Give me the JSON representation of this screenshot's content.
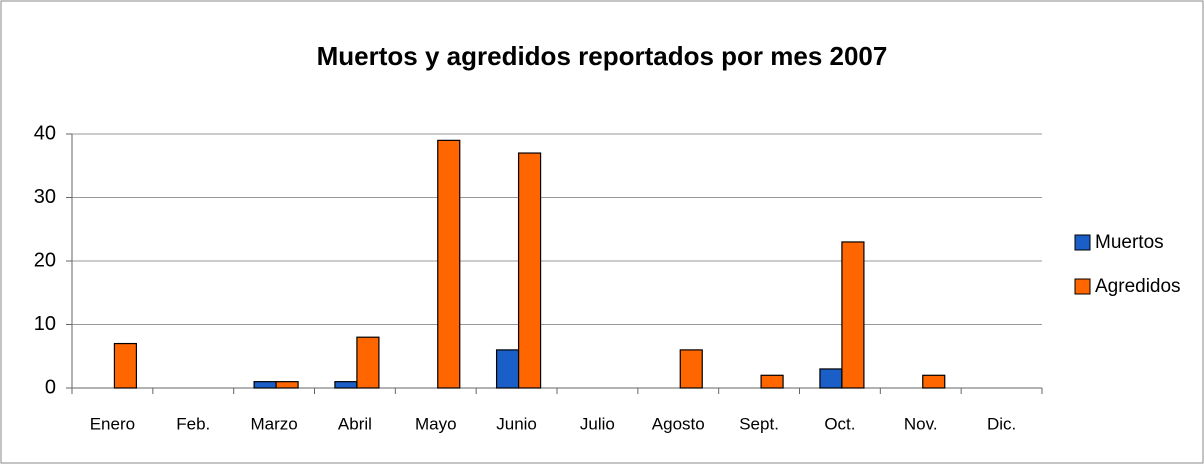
{
  "chart_data": {
    "type": "bar",
    "title": "Muertos y agredidos reportados por mes 2007",
    "categories": [
      "Enero",
      "Feb.",
      "Marzo",
      "Abril",
      "Mayo",
      "Junio",
      "Julio",
      "Agosto",
      "Sept.",
      "Oct.",
      "Nov.",
      "Dic."
    ],
    "series": [
      {
        "name": "Muertos",
        "color": "#1a5fc8",
        "values": [
          0,
          0,
          1,
          1,
          0,
          6,
          0,
          0,
          0,
          3,
          0,
          0
        ]
      },
      {
        "name": "Agredidos",
        "color": "#ff6600",
        "values": [
          7,
          0,
          1,
          8,
          39,
          37,
          0,
          6,
          2,
          23,
          2,
          0
        ]
      }
    ],
    "ylim": [
      0,
      40
    ],
    "yticks": [
      0,
      10,
      20,
      30,
      40
    ],
    "grid": true,
    "legend": "right"
  }
}
